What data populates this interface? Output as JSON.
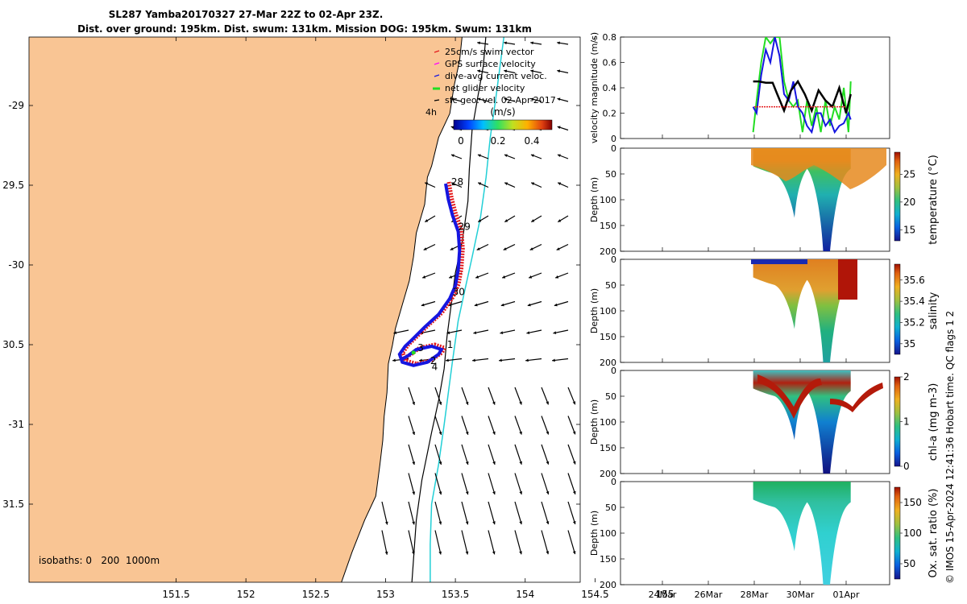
{
  "title": {
    "line1": "SL287 Yamba20170327 27-Mar 22Z to 02-Apr 23Z.",
    "line2": "Dist. over ground: 195km. Dist. swum: 131km. Mission DOG: 195km. Swum: 131km"
  },
  "colors": {
    "land": "#f9c594",
    "isobath_0": "#000000",
    "isobath_200": "#000000",
    "isobath_1000": "#22cfd6",
    "track_red": "#e31a1c",
    "track_blue": "#1616e0",
    "green": "#22dd22",
    "magenta": "#ff00ff",
    "black": "#000000"
  },
  "map": {
    "legend": [
      "25cm/s swim vector",
      "GPS surface velocity",
      "dive-avg current veloc.",
      "net glider velocity",
      "sfc geo. vel. 02-Apr-2017"
    ],
    "legend_colors": [
      "#e31a1c",
      "#ff00ff",
      "#1616e0",
      "#22dd22",
      "#000000"
    ],
    "speed_label": "4h",
    "colorbar_title": "(m/s)",
    "colorbar_ticks": [
      "0",
      "0.2",
      "0.4"
    ],
    "isobaths_label": "isobaths: 0   200  1000m",
    "lon_ticks": [
      151.5,
      152,
      152.5,
      153,
      153.5,
      154,
      154.5,
      155
    ],
    "lat_ticks": [
      "-29",
      "29.5",
      "-30",
      "30.5",
      "-31",
      "31.5"
    ],
    "day_labels": [
      {
        "text": "28",
        "lon": 153.47,
        "lat": -29.5
      },
      {
        "text": "29",
        "lon": 153.52,
        "lat": -29.78
      },
      {
        "text": "30",
        "lon": 153.48,
        "lat": -30.19
      },
      {
        "text": "1",
        "lon": 153.44,
        "lat": -30.52
      },
      {
        "text": "3",
        "lon": 153.23,
        "lat": -30.54
      },
      {
        "text": "2",
        "lon": 153.32,
        "lat": -30.62
      },
      {
        "text": "4",
        "lon": 153.33,
        "lat": -30.66
      }
    ]
  },
  "chart_data": [
    {
      "type": "line",
      "ylabel": "velocity magnitude (m/s)",
      "ylim": [
        0,
        0.8
      ],
      "yticks": [
        "0",
        "0.2",
        "0.4",
        "0.6",
        "0.8"
      ],
      "x_axis_dates": [
        "24Mar",
        "26Mar",
        "28Mar",
        "30Mar",
        "01Apr"
      ],
      "series": [
        {
          "color": "#22dd22",
          "x": [
            27.95,
            28.1,
            28.3,
            28.5,
            28.7,
            28.9,
            29.1,
            29.3,
            29.5,
            29.7,
            29.9,
            30.1,
            30.3,
            30.5,
            30.7,
            30.9,
            31.1,
            31.3,
            31.5,
            31.7,
            31.9,
            32.1,
            32.2
          ],
          "values": [
            0.05,
            0.3,
            0.6,
            0.8,
            0.75,
            0.8,
            0.8,
            0.45,
            0.3,
            0.25,
            0.3,
            0.05,
            0.3,
            0.1,
            0.25,
            0.05,
            0.3,
            0.1,
            0.25,
            0.15,
            0.4,
            0.05,
            0.45
          ]
        },
        {
          "color": "#1616e0",
          "x": [
            27.95,
            28.1,
            28.3,
            28.5,
            28.7,
            28.9,
            29.1,
            29.3,
            29.5,
            29.7,
            29.9,
            30.1,
            30.3,
            30.5,
            30.7,
            30.9,
            31.1,
            31.3,
            31.5,
            31.7,
            31.9,
            32.1,
            32.2
          ],
          "values": [
            0.25,
            0.2,
            0.5,
            0.7,
            0.6,
            0.8,
            0.65,
            0.35,
            0.3,
            0.45,
            0.25,
            0.2,
            0.1,
            0.05,
            0.2,
            0.2,
            0.1,
            0.15,
            0.05,
            0.1,
            0.12,
            0.2,
            0.15
          ]
        },
        {
          "color": "#000000",
          "x": [
            27.95,
            28.2,
            28.5,
            28.8,
            29.0,
            29.3,
            29.6,
            29.9,
            30.2,
            30.5,
            30.8,
            31.1,
            31.4,
            31.7,
            32.0,
            32.2
          ],
          "values": [
            0.45,
            0.45,
            0.44,
            0.44,
            0.35,
            0.22,
            0.38,
            0.45,
            0.35,
            0.22,
            0.38,
            0.3,
            0.25,
            0.4,
            0.2,
            0.35
          ]
        },
        {
          "color": "#e31a1c",
          "x": [
            28.0,
            28.5,
            29.0,
            29.5,
            30.0,
            30.5,
            31.0,
            31.5,
            32.0
          ],
          "values": [
            0.25,
            0.25,
            0.25,
            0.25,
            0.25,
            0.25,
            0.25,
            0.25,
            0.25
          ]
        }
      ]
    },
    {
      "type": "heatmap",
      "ylabel": "Depth (m)",
      "yticks": [
        "0",
        "50",
        "100",
        "150",
        "200"
      ],
      "colorbar_label": "temperature (°C)",
      "colorbar_ticks": [
        "15",
        "20",
        "25"
      ],
      "colorbar_range": [
        13,
        29
      ]
    },
    {
      "type": "heatmap",
      "ylabel": "Depth (m)",
      "yticks": [
        "0",
        "50",
        "100",
        "150",
        "200"
      ],
      "colorbar_label": "salinity",
      "colorbar_ticks": [
        "35",
        "35.2",
        "35.4",
        "35.6"
      ],
      "colorbar_range": [
        34.9,
        35.75
      ]
    },
    {
      "type": "heatmap",
      "ylabel": "Depth (m)",
      "yticks": [
        "0",
        "50",
        "100",
        "150",
        "200"
      ],
      "colorbar_label": "chl-a (mg m-3)",
      "colorbar_ticks": [
        "0",
        "1",
        "2"
      ],
      "colorbar_range": [
        0,
        2
      ]
    },
    {
      "type": "heatmap",
      "ylabel": "Depth (m)",
      "yticks": [
        "0",
        "50",
        "100",
        "150",
        "200"
      ],
      "colorbar_label": "Ox. sat. ratio (%)",
      "colorbar_ticks": [
        "50",
        "100",
        "150"
      ],
      "colorbar_range": [
        25,
        175
      ]
    }
  ],
  "footer_text": "© IMOS 15-Apr-2024 12:41:36 Hobart time. QC flags 1  2"
}
